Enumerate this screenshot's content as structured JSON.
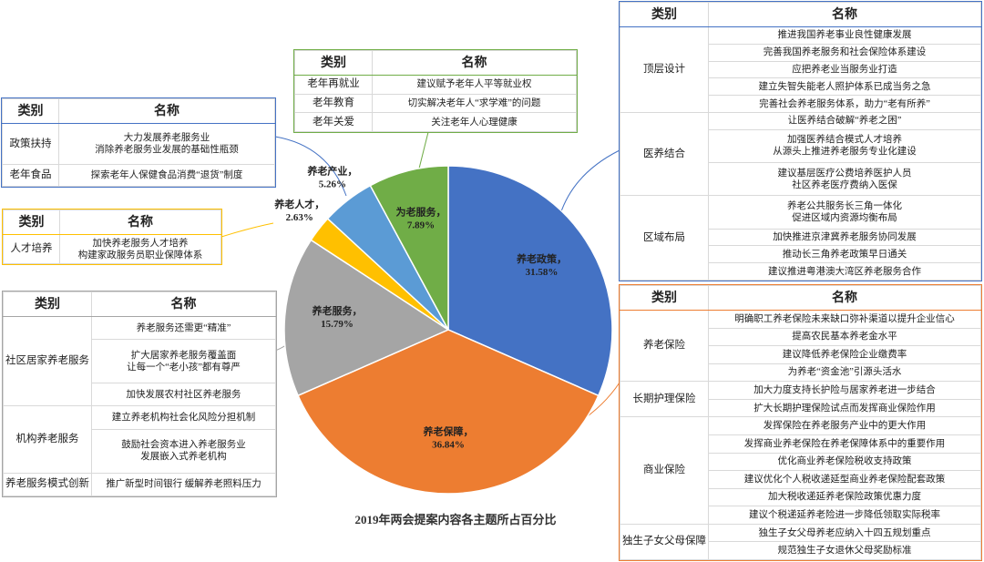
{
  "chart_data": {
    "type": "pie",
    "title": "2019年两会提案内容各主题所占百分比",
    "categories": [
      "养老政策，",
      "养老保障，",
      "养老服务，",
      "养老人才，",
      "养老产业，",
      "为老服务，"
    ],
    "values": [
      31.58,
      36.84,
      15.79,
      2.63,
      5.26,
      7.89
    ],
    "value_labels": [
      "31.58%",
      "36.84%",
      "15.79%",
      "2.63%",
      "5.26%",
      "7.89%"
    ],
    "colors": [
      "#4472c4",
      "#ed7d31",
      "#a5a5a5",
      "#ffc000",
      "#5b9bd5",
      "#70ad47"
    ]
  },
  "tables": [
    {
      "color": "#4472c4",
      "header": [
        "类别",
        "名称"
      ],
      "rows": [
        {
          "category": "政策扶持",
          "items": [
            "大力发展养老服务业\n消除养老服务业发展的基础性瓶颈"
          ]
        },
        {
          "category": "老年食品",
          "items": [
            "探索老年人保健食品消费“退货”制度"
          ]
        }
      ]
    },
    {
      "color": "#70ad47",
      "header": [
        "类别",
        "名称"
      ],
      "rows": [
        {
          "category": "老年再就业",
          "items": [
            "建议赋予老年人平等就业权"
          ]
        },
        {
          "category": "老年教育",
          "items": [
            "切实解决老年人“求学难”的问题"
          ]
        },
        {
          "category": "老年关爱",
          "items": [
            "关注老年人心理健康"
          ]
        }
      ]
    },
    {
      "color": "#ffc000",
      "header": [
        "类别",
        "名称"
      ],
      "rows": [
        {
          "category": "人才培养",
          "items": [
            "加快养老服务人才培养\n构建家政服务员职业保障体系"
          ]
        }
      ]
    },
    {
      "color": "#a5a5a5",
      "header": [
        "类别",
        "名称"
      ],
      "rows": [
        {
          "category": "社区居家养老服务",
          "items": [
            "养老服务还需更“精准”",
            "扩大居家养老服务覆盖面\n让每一个“老小孩”都有尊严",
            "加快发展农村社区养老服务"
          ]
        },
        {
          "category": "机构养老服务",
          "items": [
            "建立养老机构社会化风险分担机制",
            "鼓励社会资本进入养老服务业\n发展嵌入式养老机构"
          ]
        },
        {
          "category": "养老服务模式创新",
          "items": [
            "推广新型时间银行 缓解养老照料压力"
          ]
        }
      ]
    },
    {
      "color": "#4472c4",
      "header": [
        "类别",
        "名称"
      ],
      "rows": [
        {
          "category": "顶层设计",
          "items": [
            "推进我国养老事业良性健康发展",
            "完善我国养老服务和社会保险体系建设",
            "应把养老业当服务业打造",
            "建立失智失能老人照护体系已成当务之急",
            "完善社会养老服务体系，助力“老有所养”"
          ]
        },
        {
          "category": "医养结合",
          "items": [
            "让医养结合破解“养老之困”",
            "加强医养结合模式人才培养\n从源头上推进养老服务专业化建设",
            "建议基层医疗公费培养医护人员\n社区养老医疗费纳入医保"
          ]
        },
        {
          "category": "区域布局",
          "items": [
            "养老公共服务长三角一体化\n促进区域内资源均衡布局",
            "加快推进京津冀养老服务协同发展",
            "推动长三角养老政策早日通关",
            "建议推进粤港澳大湾区养老服务合作"
          ]
        }
      ]
    },
    {
      "color": "#ed7d31",
      "header": [
        "类别",
        "名称"
      ],
      "rows": [
        {
          "category": "养老保险",
          "items": [
            "明确职工养老保险未来缺口弥补渠道以提升企业信心",
            "提高农民基本养老金水平",
            "建议降低养老保险企业缴费率",
            "为养老“资金池”引源头活水"
          ]
        },
        {
          "category": "长期护理保险",
          "items": [
            "加大力度支持长护险与居家养老进一步结合",
            "扩大长期护理保险试点而发挥商业保险作用"
          ]
        },
        {
          "category": "商业保险",
          "items": [
            "发挥保险在养老服务产业中的更大作用",
            "发挥商业养老保险在养老保障体系中的重要作用",
            "优化商业养老保险税收支持政策",
            "建议优化个人税收递延型商业养老保险配套政策",
            "加大税收递延养老保险政策优惠力度",
            "建议个税递延养老险进一步降低领取实际税率"
          ]
        },
        {
          "category": "独生子女父母保障",
          "items": [
            "独生子女父母养老应纳入十四五规划重点",
            "规范独生子女退休父母奖励标准"
          ]
        }
      ]
    }
  ]
}
